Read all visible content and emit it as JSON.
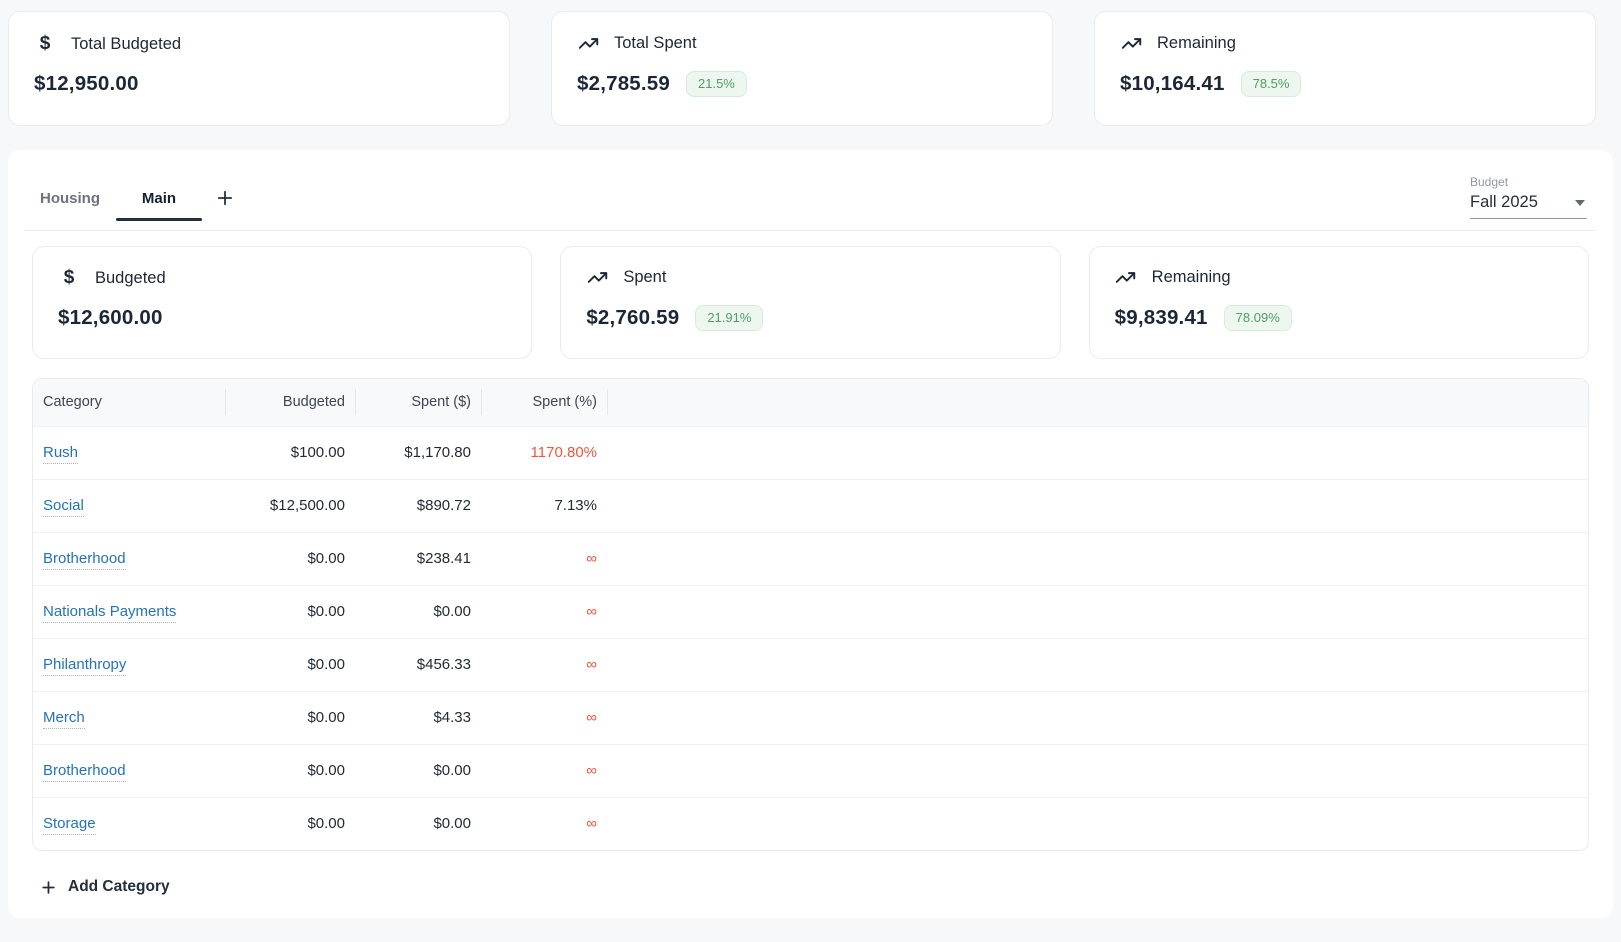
{
  "summary_cards": [
    {
      "label": "Total Budgeted",
      "value": "$12,950.00",
      "icon": "dollar",
      "badge": null
    },
    {
      "label": "Total Spent",
      "value": "$2,785.59",
      "icon": "trending-up",
      "badge": "21.5%"
    },
    {
      "label": "Remaining",
      "value": "$10,164.41",
      "icon": "trending-up",
      "badge": "78.5%"
    }
  ],
  "tabs": [
    {
      "label": "Housing",
      "active": false
    },
    {
      "label": "Main",
      "active": true
    }
  ],
  "add_tab_icon": "plus-icon",
  "budget_select": {
    "label": "Budget",
    "value": "Fall 2025"
  },
  "tab_summary_cards": [
    {
      "label": "Budgeted",
      "value": "$12,600.00",
      "icon": "dollar",
      "badge": null
    },
    {
      "label": "Spent",
      "value": "$2,760.59",
      "icon": "trending-up",
      "badge": "21.91%"
    },
    {
      "label": "Remaining",
      "value": "$9,839.41",
      "icon": "trending-up",
      "badge": "78.09%"
    }
  ],
  "table": {
    "columns": [
      "Category",
      "Budgeted",
      "Spent ($)",
      "Spent (%)"
    ],
    "rows": [
      {
        "category": "Rush",
        "budgeted": "$100.00",
        "spent": "$1,170.80",
        "spent_pct": "1170.80%",
        "pct_over": true
      },
      {
        "category": "Social",
        "budgeted": "$12,500.00",
        "spent": "$890.72",
        "spent_pct": "7.13%",
        "pct_over": false
      },
      {
        "category": "Brotherhood",
        "budgeted": "$0.00",
        "spent": "$238.41",
        "spent_pct": "∞",
        "pct_over": true
      },
      {
        "category": "Nationals Payments",
        "budgeted": "$0.00",
        "spent": "$0.00",
        "spent_pct": "∞",
        "pct_over": true
      },
      {
        "category": "Philanthropy",
        "budgeted": "$0.00",
        "spent": "$456.33",
        "spent_pct": "∞",
        "pct_over": true
      },
      {
        "category": "Merch",
        "budgeted": "$0.00",
        "spent": "$4.33",
        "spent_pct": "∞",
        "pct_over": true
      },
      {
        "category": "Brotherhood",
        "budgeted": "$0.00",
        "spent": "$0.00",
        "spent_pct": "∞",
        "pct_over": true
      },
      {
        "category": "Storage",
        "budgeted": "$0.00",
        "spent": "$0.00",
        "spent_pct": "∞",
        "pct_over": true
      }
    ]
  },
  "add_category_label": "Add Category",
  "colors": {
    "page_bg": "#f7f8fa",
    "badge_green_text": "#4f9e63",
    "badge_green_bg": "#edf7ef",
    "over_red": "#f4543c",
    "link_blue": "#2573b5",
    "active_tab_dark": "#232f3f"
  }
}
